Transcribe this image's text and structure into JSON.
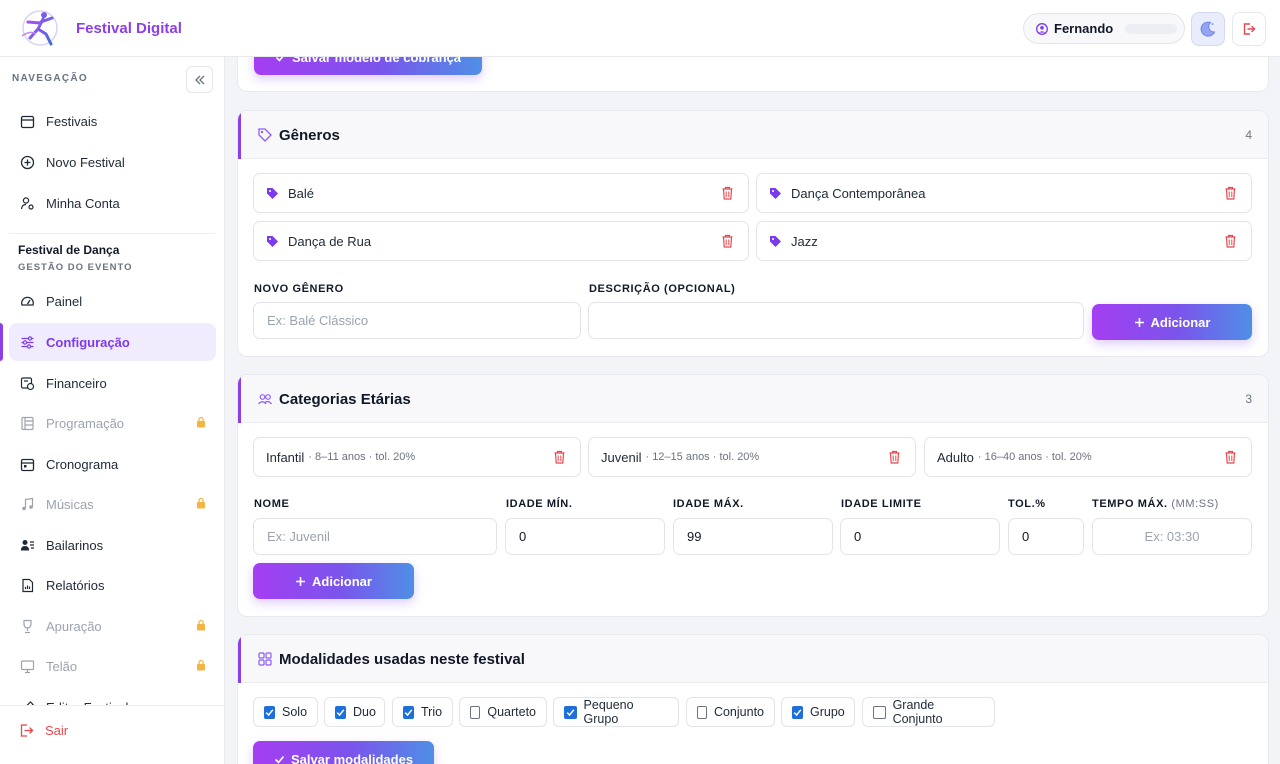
{
  "app": {
    "brand_name": "Festival Digital",
    "user_name": "Fernando"
  },
  "sidebar": {
    "nav_title": "NAVEGAÇÃO",
    "items": [
      {
        "label": "Festivais",
        "icon": "calendar-icon"
      },
      {
        "label": "Novo Festival",
        "icon": "plus-circle-icon"
      },
      {
        "label": "Minha Conta",
        "icon": "user-gear-icon"
      }
    ],
    "event_name": "Festival de Dança",
    "event_subtitle": "GESTÃO DO EVENTO",
    "event_items": [
      {
        "label": "Painel",
        "icon": "gauge-icon",
        "locked": false
      },
      {
        "label": "Configuração",
        "icon": "sliders-icon",
        "active": true
      },
      {
        "label": "Financeiro",
        "icon": "finance-icon"
      },
      {
        "label": "Programação",
        "icon": "program-icon",
        "locked": true
      },
      {
        "label": "Cronograma",
        "icon": "schedule-icon"
      },
      {
        "label": "Músicas",
        "icon": "music-icon",
        "locked": true
      },
      {
        "label": "Bailarinos",
        "icon": "dancers-icon"
      },
      {
        "label": "Relatórios",
        "icon": "report-icon"
      },
      {
        "label": "Apuração",
        "icon": "trophy-icon",
        "locked": true
      },
      {
        "label": "Telão",
        "icon": "monitor-icon",
        "locked": true
      },
      {
        "label": "Editar Festival",
        "icon": "edit-icon"
      }
    ],
    "logout_label": "Sair"
  },
  "billing": {
    "save_label": "Salvar modelo de cobrança"
  },
  "genres": {
    "title": "Gêneros",
    "count": "4",
    "items": [
      "Balé",
      "Dança Contemporânea",
      "Dança de Rua",
      "Jazz"
    ],
    "new_label": "NOVO GÊNERO",
    "new_placeholder": "Ex: Balé Clássico",
    "desc_label": "DESCRIÇÃO (OPCIONAL)",
    "add_label": "Adicionar"
  },
  "age_categories": {
    "title": "Categorias Etárias",
    "count": "3",
    "items": [
      {
        "name": "Infantil",
        "meta": "· 8–11 anos · tol. 20%"
      },
      {
        "name": "Juvenil",
        "meta": "· 12–15 anos · tol. 20%"
      },
      {
        "name": "Adulto",
        "meta": "· 16–40 anos · tol. 20%"
      }
    ],
    "fields": {
      "name_label": "NOME",
      "name_placeholder": "Ex: Juvenil",
      "min_label": "IDADE MÍN.",
      "min_value": "0",
      "max_label": "IDADE MÁX.",
      "max_value": "99",
      "limit_label": "IDADE LIMITE",
      "limit_value": "0",
      "tol_label": "TOL.%",
      "tol_value": "0",
      "time_label": "TEMPO MÁX.",
      "time_unit": "(MM:SS)",
      "time_placeholder": "Ex: 03:30"
    },
    "add_label": "Adicionar"
  },
  "modalities": {
    "title": "Modalidades usadas neste festival",
    "items": [
      {
        "label": "Solo",
        "checked": true
      },
      {
        "label": "Duo",
        "checked": true
      },
      {
        "label": "Trio",
        "checked": true
      },
      {
        "label": "Quarteto",
        "checked": false
      },
      {
        "label": "Pequeno Grupo",
        "checked": true
      },
      {
        "label": "Conjunto",
        "checked": false
      },
      {
        "label": "Grupo",
        "checked": true
      },
      {
        "label": "Grande Conjunto",
        "checked": false
      }
    ],
    "save_label": "Salvar modalidades"
  },
  "colors": {
    "accent": "#8b3fe8",
    "danger": "#e5484d",
    "checkbox": "#1d6fdc"
  }
}
